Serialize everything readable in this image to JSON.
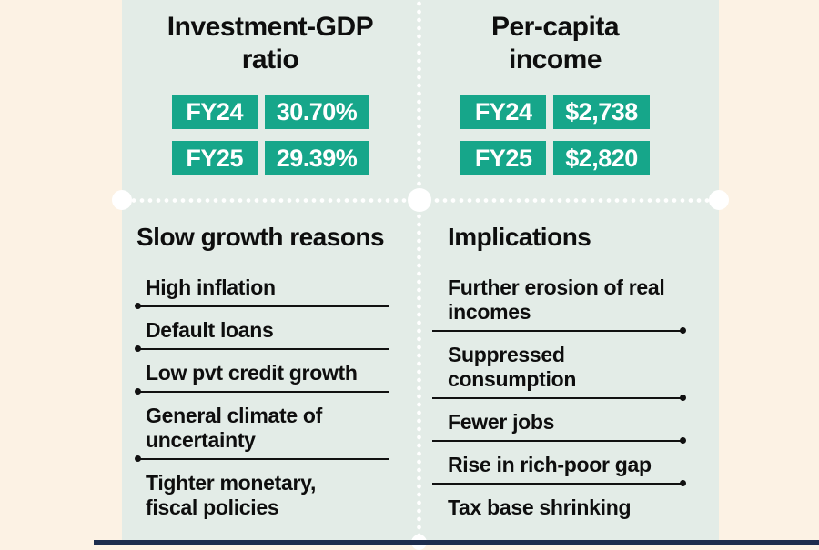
{
  "colors": {
    "background_cream": "#fcf2e4",
    "panel_mint": "#e3ece7",
    "badge_teal": "#16a68a",
    "text_ink": "#0e0e0e",
    "footer_navy": "#1d2d4e",
    "divider_white": "#ffffff"
  },
  "panels": {
    "investment": {
      "title_line1": "Investment-GDP",
      "title_line2": "ratio",
      "rows": [
        {
          "year": "FY24",
          "value": "30.70%"
        },
        {
          "year": "FY25",
          "value": "29.39%"
        }
      ]
    },
    "income": {
      "title_line1": "Per-capita",
      "title_line2": "income",
      "rows": [
        {
          "year": "FY24",
          "value": "$2,738"
        },
        {
          "year": "FY25",
          "value": "$2,820"
        }
      ]
    },
    "reasons": {
      "title": "Slow growth reasons",
      "items": [
        "High inflation",
        "Default loans",
        "Low pvt credit growth",
        "General climate of uncertainty",
        "Tighter monetary, fiscal policies"
      ]
    },
    "implications": {
      "title": "Implications",
      "items": [
        "Further erosion of real incomes",
        "Suppressed consumption",
        "Fewer jobs",
        "Rise in rich-poor gap",
        "Tax base shrinking"
      ]
    }
  },
  "chart_data": [
    {
      "type": "table",
      "title": "Investment-GDP ratio",
      "categories": [
        "FY24",
        "FY25"
      ],
      "values": [
        "30.70%",
        "29.39%"
      ]
    },
    {
      "type": "table",
      "title": "Per-capita income",
      "categories": [
        "FY24",
        "FY25"
      ],
      "values": [
        "$2,738",
        "$2,820"
      ]
    }
  ]
}
